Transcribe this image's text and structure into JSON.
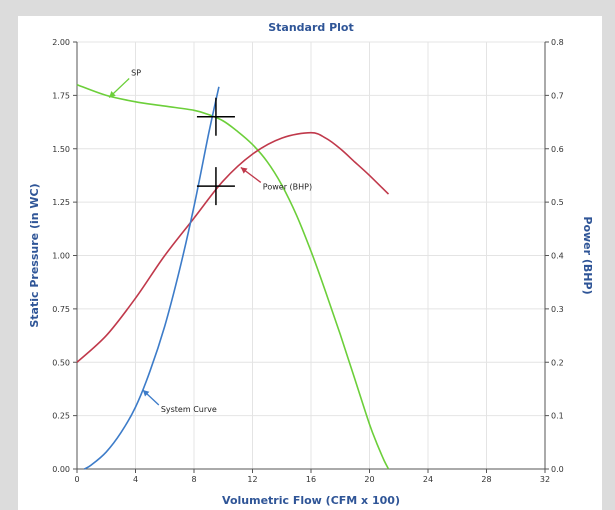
{
  "chart_data": {
    "type": "line",
    "title": "Standard Plot",
    "xlabel": "Volumetric Flow (CFM x 100)",
    "ylabel": "Static Pressure (in WC)",
    "y2label": "Power (BHP)",
    "xlim": [
      0,
      32
    ],
    "ylim": [
      0,
      2
    ],
    "y2lim": [
      0,
      0.8
    ],
    "xticks": [
      0,
      4,
      8,
      12,
      16,
      20,
      24,
      28,
      32
    ],
    "yticks": [
      "0.00",
      "0.25",
      "0.50",
      "0.75",
      "1.00",
      "1.25",
      "1.50",
      "1.75",
      "2.00"
    ],
    "y2ticks": [
      "0.0",
      "0.1",
      "0.2",
      "0.3",
      "0.4",
      "0.5",
      "0.6",
      "0.7",
      "0.8"
    ],
    "grid": true,
    "series": [
      {
        "name": "SP",
        "axis": "left",
        "color": "#6ccf3a",
        "x": [
          0,
          2,
          4,
          6,
          8,
          9,
          10,
          11,
          12,
          13,
          14,
          15,
          16,
          17,
          18,
          19,
          20,
          20.5,
          21,
          21.3
        ],
        "y": [
          1.8,
          1.75,
          1.72,
          1.7,
          1.68,
          1.66,
          1.63,
          1.58,
          1.52,
          1.44,
          1.33,
          1.19,
          1.02,
          0.83,
          0.63,
          0.42,
          0.21,
          0.12,
          0.04,
          0.0
        ]
      },
      {
        "name": "Power (BHP)",
        "axis": "right",
        "color": "#c0394b",
        "x": [
          0,
          2,
          4,
          6,
          8,
          10,
          12,
          14,
          16,
          17,
          18,
          19,
          20,
          21.3
        ],
        "y": [
          0.2,
          0.25,
          0.32,
          0.4,
          0.47,
          0.54,
          0.59,
          0.62,
          0.63,
          0.62,
          0.6,
          0.575,
          0.55,
          0.515
        ]
      },
      {
        "name": "System Curve",
        "axis": "left",
        "color": "#3d7cc9",
        "x": [
          0.5,
          1,
          2,
          3,
          4,
          5,
          6,
          7,
          8,
          9,
          9.7
        ],
        "y": [
          0.0,
          0.02,
          0.08,
          0.17,
          0.29,
          0.46,
          0.67,
          0.93,
          1.23,
          1.57,
          1.79
        ]
      }
    ],
    "markers": [
      {
        "x": 9.5,
        "y": 1.65,
        "axis": "left"
      },
      {
        "x": 9.5,
        "y": 0.53,
        "axis": "right"
      }
    ],
    "annotations": [
      {
        "text": "SP",
        "series": "SP",
        "arrow_x": 2.2,
        "arrow_y": 1.74,
        "axis": "left"
      },
      {
        "text": "Power (BHP)",
        "series": "Power (BHP)",
        "arrow_x": 11.2,
        "arrow_y": 0.565,
        "axis": "right"
      },
      {
        "text": "System Curve",
        "series": "System Curve",
        "arrow_x": 4.5,
        "arrow_y": 0.37,
        "axis": "left"
      }
    ]
  }
}
